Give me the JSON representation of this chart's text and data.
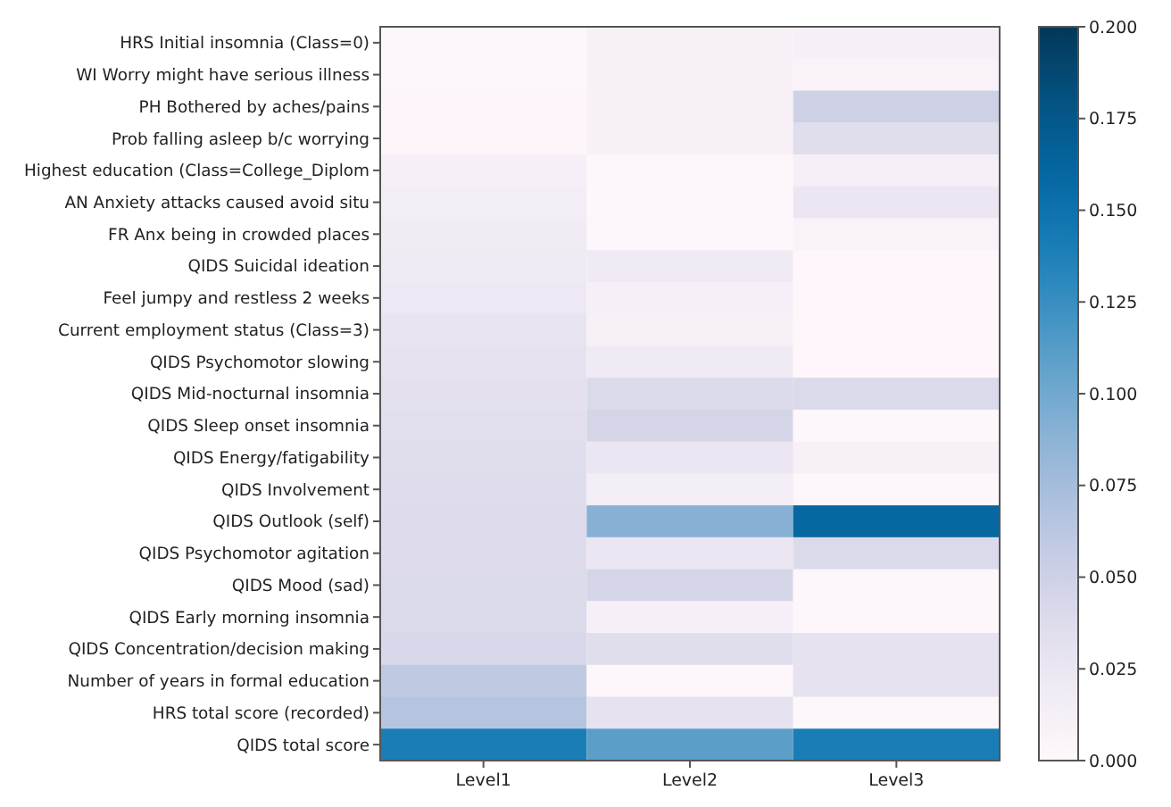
{
  "chart_data": {
    "type": "heatmap",
    "categories": [
      "Level1",
      "Level2",
      "Level3"
    ],
    "y_categories": [
      "HRS Initial insomnia (Class=0)",
      "WI Worry might have serious illness",
      "PH Bothered by aches/pains",
      "Prob falling asleep b/c worrying",
      "Highest education (Class=College_Diplom",
      "AN Anxiety attacks caused avoid situ",
      "FR Anx being in crowded places",
      "QIDS Suicidal ideation",
      "Feel jumpy and restless 2 weeks",
      "Current employment status (Class=3)",
      "QIDS Psychomotor slowing",
      "QIDS Mid-nocturnal insomnia",
      "QIDS Sleep onset insomnia",
      "QIDS Energy/fatigability",
      "QIDS Involvement",
      "QIDS Outlook (self)",
      "QIDS Psychomotor agitation",
      "QIDS Mood (sad)",
      "QIDS Early morning insomnia",
      "QIDS Concentration/decision making",
      "Number of years in formal education",
      "HRS total score (recorded)",
      "QIDS total score"
    ],
    "cells": [
      [
        0.002,
        0.01,
        0.012
      ],
      [
        0.002,
        0.01,
        0.008
      ],
      [
        0.003,
        0.01,
        0.05
      ],
      [
        0.003,
        0.01,
        0.035
      ],
      [
        0.012,
        0.002,
        0.012
      ],
      [
        0.015,
        0.002,
        0.025
      ],
      [
        0.018,
        0.002,
        0.008
      ],
      [
        0.02,
        0.02,
        0.001
      ],
      [
        0.022,
        0.012,
        0.001
      ],
      [
        0.028,
        0.01,
        0.001
      ],
      [
        0.03,
        0.02,
        0.001
      ],
      [
        0.032,
        0.04,
        0.04
      ],
      [
        0.034,
        0.045,
        0.002
      ],
      [
        0.035,
        0.025,
        0.01
      ],
      [
        0.036,
        0.015,
        0.002
      ],
      [
        0.037,
        0.09,
        0.16
      ],
      [
        0.038,
        0.025,
        0.04
      ],
      [
        0.039,
        0.045,
        0.002
      ],
      [
        0.04,
        0.012,
        0.002
      ],
      [
        0.042,
        0.035,
        0.03
      ],
      [
        0.06,
        0.002,
        0.03
      ],
      [
        0.065,
        0.03,
        0.002
      ],
      [
        0.14,
        0.11,
        0.14
      ]
    ],
    "clim": [
      0,
      0.2
    ],
    "cticks": [
      {
        "value": 0,
        "label": "0.000"
      },
      {
        "value": 0.025,
        "label": "0.025"
      },
      {
        "value": 0.05,
        "label": "0.050"
      },
      {
        "value": 0.075,
        "label": "0.075"
      },
      {
        "value": 0.1,
        "label": "0.100"
      },
      {
        "value": 0.125,
        "label": "0.125"
      },
      {
        "value": 0.15,
        "label": "0.150"
      },
      {
        "value": 0.175,
        "label": "0.175"
      },
      {
        "value": 0.2,
        "label": "0.200"
      }
    ]
  }
}
